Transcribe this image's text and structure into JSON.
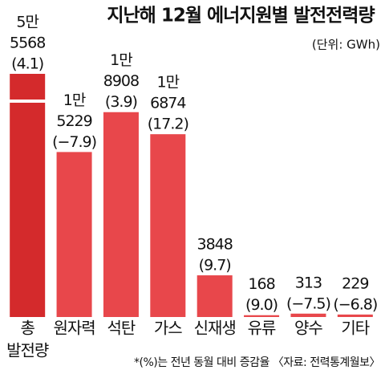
{
  "chart_data": {
    "type": "bar",
    "title": "지난해 12월 에너지원별 발전전력량",
    "unit": "(단위: GWh)",
    "footnote": "*(%)는 전년 동월 대비 증감율 〈자료: 전력통계월보〉",
    "categories": [
      [
        "총",
        "발전량"
      ],
      "원자력",
      "석탄",
      "가스",
      "신재생",
      "유류",
      "양수",
      "기타"
    ],
    "values": [
      55568,
      15229,
      18908,
      16874,
      3848,
      168,
      313,
      229
    ],
    "value_labels": [
      [
        "5만",
        "5568"
      ],
      [
        "1만",
        "5229"
      ],
      [
        "1만",
        "8908"
      ],
      [
        "1만",
        "6874"
      ],
      [
        "3848"
      ],
      [
        "168"
      ],
      [
        "313"
      ],
      [
        "229"
      ]
    ],
    "changes": [
      4.1,
      -7.9,
      3.9,
      17.2,
      9.7,
      9.0,
      -7.5,
      -6.8
    ],
    "change_labels": [
      "(4.1)",
      "(−7.9)",
      "(3.9)",
      "(17.2)",
      "(9.7)",
      "(9.0)",
      "(−7.5)",
      "(−6.8)"
    ],
    "colors": [
      "#d42a2c",
      "#e8474b",
      "#e8474b",
      "#e8474b",
      "#e8474b",
      "#e8474b",
      "#e8474b",
      "#e8474b"
    ],
    "ylim": [
      0,
      20000
    ],
    "axis_break": true
  }
}
